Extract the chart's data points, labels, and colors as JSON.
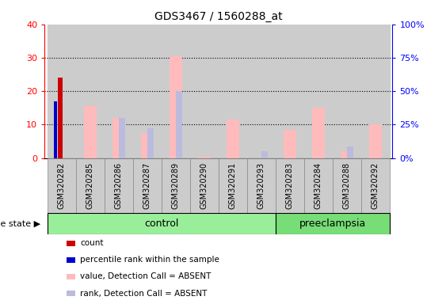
{
  "title": "GDS3467 / 1560288_at",
  "samples": [
    "GSM320282",
    "GSM320285",
    "GSM320286",
    "GSM320287",
    "GSM320289",
    "GSM320290",
    "GSM320291",
    "GSM320293",
    "GSM320283",
    "GSM320284",
    "GSM320288",
    "GSM320292"
  ],
  "groups": [
    "control",
    "control",
    "control",
    "control",
    "control",
    "control",
    "control",
    "control",
    "preeclampsia",
    "preeclampsia",
    "preeclampsia",
    "preeclampsia"
  ],
  "count_values": [
    24,
    0,
    0,
    0,
    0,
    0,
    0,
    0,
    0,
    0,
    0,
    0
  ],
  "percentile_values": [
    17,
    0,
    0,
    0,
    0,
    0,
    0,
    0,
    0,
    0,
    0,
    0
  ],
  "value_absent": [
    0,
    15.5,
    12,
    7.5,
    30.5,
    0.5,
    11.5,
    0,
    8.5,
    15,
    2,
    10
  ],
  "rank_absent": [
    0,
    0,
    12,
    9,
    20,
    0,
    0,
    2,
    0,
    0,
    3.5,
    0
  ],
  "ylim_left": [
    0,
    40
  ],
  "ylim_right": [
    0,
    100
  ],
  "yticks_left": [
    0,
    10,
    20,
    30,
    40
  ],
  "yticks_right": [
    0,
    25,
    50,
    75,
    100
  ],
  "ytick_labels_right": [
    "0%",
    "25%",
    "50%",
    "75%",
    "100%"
  ],
  "color_count": "#cc0000",
  "color_percentile": "#0000cc",
  "color_value_absent": "#ffbbbb",
  "color_rank_absent": "#bbbbdd",
  "color_control_bg": "#99ee99",
  "color_preeclampsia_bg": "#77dd77",
  "color_panel_bg": "#cccccc",
  "legend_items": [
    "count",
    "percentile rank within the sample",
    "value, Detection Call = ABSENT",
    "rank, Detection Call = ABSENT"
  ],
  "legend_colors": [
    "#cc0000",
    "#0000cc",
    "#ffbbbb",
    "#bbbbdd"
  ],
  "control_count": 8,
  "preeclampsia_count": 4,
  "disease_state_label": "disease state",
  "control_label": "control",
  "preeclampsia_label": "preeclampsia"
}
